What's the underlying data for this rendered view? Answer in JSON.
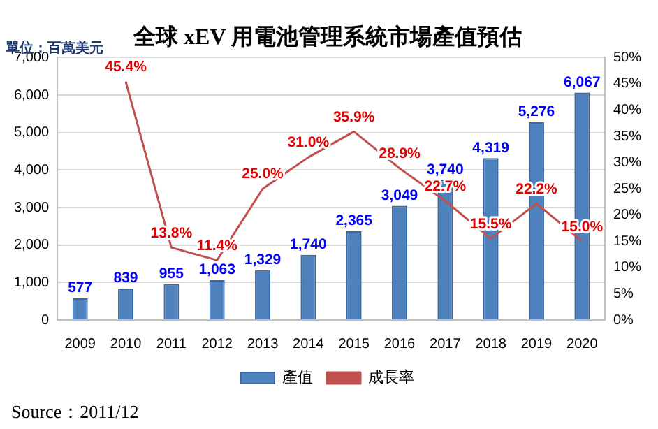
{
  "chart_data": {
    "type": "bar",
    "title": "全球 xEV 用電池管理系統市場產值預估",
    "ylabel": "單位：百萬美元",
    "categories": [
      "2009",
      "2010",
      "2011",
      "2012",
      "2013",
      "2014",
      "2015",
      "2016",
      "2017",
      "2018",
      "2019",
      "2020"
    ],
    "series": [
      {
        "name": "產值",
        "color": "#4f81bd",
        "values": [
          577,
          839,
          955,
          1063,
          1329,
          1740,
          2365,
          3049,
          3740,
          4319,
          5276,
          6067
        ],
        "value_labels": [
          "577",
          "839",
          "955",
          "1,063",
          "1,329",
          "1,740",
          "2,365",
          "3,049",
          "3,740",
          "4,319",
          "5,276",
          "6,067"
        ]
      },
      {
        "name": "成長率",
        "type": "line",
        "axis": "y2",
        "color": "#c0504d",
        "values": [
          null,
          45.4,
          13.8,
          11.4,
          25.0,
          31.0,
          35.9,
          28.9,
          22.7,
          15.5,
          22.2,
          15.0
        ],
        "value_labels": [
          null,
          "45.4%",
          "13.8%",
          "11.4%",
          "25.0%",
          "31.0%",
          "35.9%",
          "28.9%",
          "22.7%",
          "15.5%",
          "22.2%",
          "15.0%"
        ]
      }
    ],
    "ylim": [
      0,
      7000
    ],
    "yticks": [
      0,
      {
        "value": 1000,
        "label": "1,000"
      },
      {
        "value": 2000,
        "label": "2,000"
      },
      {
        "value": 3000,
        "label": "3,000"
      },
      {
        "value": 4000,
        "label": "4,000"
      },
      {
        "value": 5000,
        "label": "5,000"
      },
      {
        "value": 6000,
        "label": "6,000"
      },
      {
        "value": 7000,
        "label": "7,000"
      }
    ],
    "y2lim": [
      0,
      50
    ],
    "y2ticks": [
      {
        "value": 0,
        "label": "0%"
      },
      {
        "value": 5,
        "label": "5%"
      },
      {
        "value": 10,
        "label": "10%"
      },
      {
        "value": 15,
        "label": "15%"
      },
      {
        "value": 20,
        "label": "20%"
      },
      {
        "value": 25,
        "label": "25%"
      },
      {
        "value": 30,
        "label": "30%"
      },
      {
        "value": 35,
        "label": "35%"
      },
      {
        "value": 40,
        "label": "40%"
      },
      {
        "value": 45,
        "label": "45%"
      },
      {
        "value": 50,
        "label": "50%"
      }
    ],
    "grid": "y",
    "legend": "bottom",
    "marker": "none",
    "line_style": "solid",
    "annotations": [
      "Source：2011/12"
    ]
  }
}
